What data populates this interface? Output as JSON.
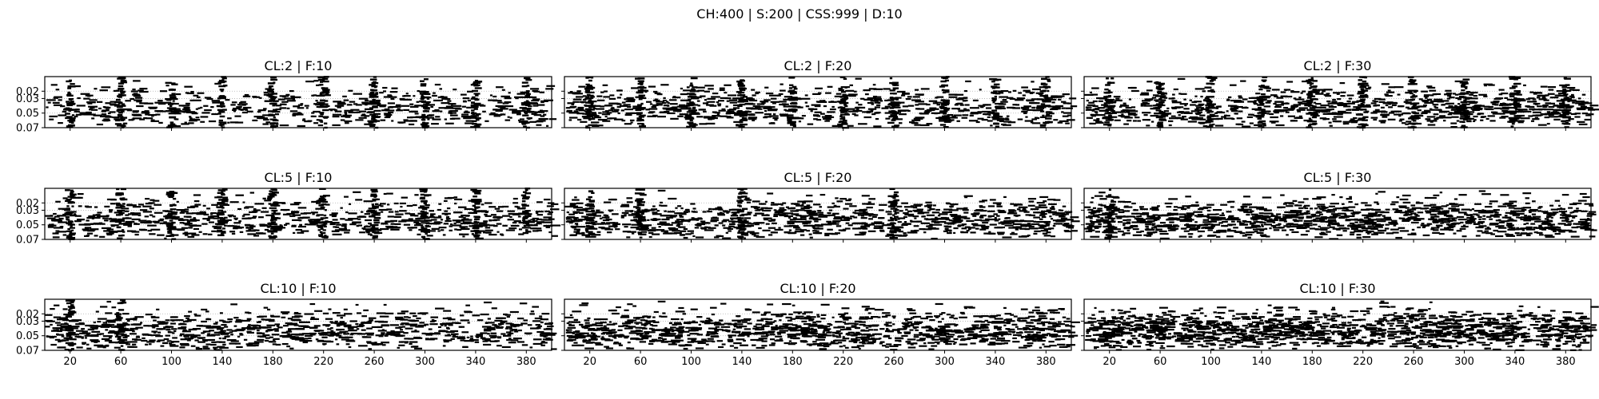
{
  "suptitle": "CH:400 | S:200 | CSS:999 | D:10",
  "colors": {
    "raster": "#000000",
    "frame": "#000000",
    "grid": "#b0b0b0",
    "background": "#ffffff"
  },
  "chart_data": {
    "type": "scatter",
    "layout": {
      "rows": 3,
      "cols": 3,
      "sharex": true,
      "sharey": true
    },
    "xlim": [
      0,
      400
    ],
    "ylim": [
      0.07,
      0.0
    ],
    "y_inverted": true,
    "x_ticks": [
      20,
      60,
      100,
      140,
      180,
      220,
      260,
      300,
      340,
      380
    ],
    "y_ticks": [
      0.02,
      0.03,
      0.05,
      0.07
    ],
    "y_tick_labels": [
      "0.02",
      "0.03",
      "0.05",
      "0.07"
    ],
    "grid": "dotted horizontal",
    "marker": "short horizontal black dash",
    "panels": [
      {
        "title": "CL:2 | F:10",
        "cl": 2,
        "f": 10,
        "dense_columns": [
          20,
          60,
          100,
          140,
          180,
          220,
          260,
          300,
          340,
          380
        ]
      },
      {
        "title": "CL:2 | F:20",
        "cl": 2,
        "f": 20,
        "dense_columns": [
          20,
          60,
          100,
          140,
          180,
          220,
          260,
          300,
          340,
          380
        ]
      },
      {
        "title": "CL:2 | F:30",
        "cl": 2,
        "f": 30,
        "dense_columns": [
          20,
          60,
          100,
          140,
          180,
          220,
          260,
          300,
          340,
          380
        ]
      },
      {
        "title": "CL:5 | F:10",
        "cl": 5,
        "f": 10,
        "dense_columns": [
          20,
          60,
          100,
          140,
          180,
          220,
          260,
          300,
          340,
          380
        ]
      },
      {
        "title": "CL:5 | F:20",
        "cl": 5,
        "f": 20,
        "dense_columns": [
          20,
          60,
          140,
          260
        ]
      },
      {
        "title": "CL:5 | F:30",
        "cl": 5,
        "f": 30,
        "dense_columns": [
          20
        ]
      },
      {
        "title": "CL:10 | F:10",
        "cl": 10,
        "f": 10,
        "dense_columns": [
          20,
          60
        ]
      },
      {
        "title": "CL:10 | F:20",
        "cl": 10,
        "f": 20,
        "dense_columns": []
      },
      {
        "title": "CL:10 | F:30",
        "cl": 10,
        "f": 30,
        "dense_columns": []
      }
    ]
  }
}
